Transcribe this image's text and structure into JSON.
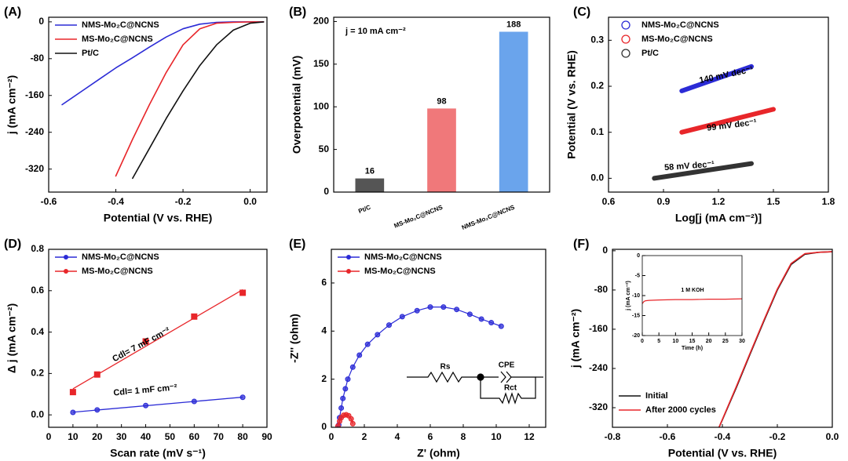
{
  "chart_data": [
    {
      "type": "line",
      "panel_label": "(A)",
      "xlabel": "Potential (V vs. RHE)",
      "ylabel": "j (mA cm⁻²)",
      "x": [
        -0.56,
        -0.5,
        -0.45,
        -0.4,
        -0.35,
        -0.3,
        -0.25,
        -0.2,
        -0.15,
        -0.1,
        -0.05,
        0,
        0.04
      ],
      "series": [
        {
          "name": "NMS-Mo₂C@NCNS",
          "color": "#2b2bd6",
          "values": [
            -180,
            -150,
            -125,
            -100,
            -78,
            -55,
            -33,
            -15,
            -5,
            -1,
            0,
            0,
            0
          ]
        },
        {
          "name": "MS-Mo₂C@NCNS",
          "color": "#e8262a",
          "values": [
            null,
            null,
            null,
            -335,
            -255,
            -180,
            -110,
            -50,
            -15,
            -3,
            -1,
            0,
            0
          ]
        },
        {
          "name": "Pt/C",
          "color": "#111111",
          "values": [
            null,
            null,
            null,
            null,
            -340,
            -275,
            -210,
            -150,
            -95,
            -50,
            -18,
            -3,
            0
          ]
        }
      ],
      "xlim": [
        -0.6,
        0.05
      ],
      "xticks": [
        -0.6,
        -0.4,
        -0.2,
        {
          "value": 0,
          "label": "0.0"
        }
      ],
      "ylim": [
        -370,
        10
      ],
      "yticks": [
        0,
        -80,
        -160,
        -240,
        -320
      ],
      "legend": "upper left"
    },
    {
      "type": "bar",
      "panel_label": "(B)",
      "ylabel": "Overpotential (mV)",
      "annotations": [
        {
          "text": "j = 10 mA cm⁻²",
          "color": "#000000"
        }
      ],
      "categories": [
        "Pt/C",
        "MS-Mo₂C@NCNS",
        "NMS-Mo₂C@NCNS"
      ],
      "values": [
        16,
        98,
        188
      ],
      "colors": [
        "#555555",
        "#f0787a",
        "#6aa4ec"
      ],
      "ylim": [
        0,
        205
      ],
      "yticks": [
        0,
        50,
        100,
        150,
        200
      ]
    },
    {
      "type": "line",
      "panel_label": "(C)",
      "xlabel": "Log[j (mA cm⁻²)]",
      "ylabel": "Potential (V vs. RHE)",
      "x": [
        0.85,
        1.0,
        1.38,
        1.5
      ],
      "series": [
        {
          "name": "NMS-Mo₂C@NCNS",
          "color": "#2b2bd6",
          "values": [
            null,
            0.19,
            0.243,
            null
          ]
        },
        {
          "name": "MS-Mo₂C@NCNS",
          "color": "#e8262a",
          "values": [
            null,
            0.1,
            0.138,
            0.15
          ]
        },
        {
          "name": "Pt/C",
          "color": "#333333",
          "values": [
            0.0,
            0.009,
            0.032,
            null
          ]
        }
      ],
      "annotations": [
        {
          "text": "140 mV dec⁻¹",
          "color": "#2b2bd6"
        },
        {
          "text": "99 mV dec⁻¹",
          "color": "#e8262a"
        },
        {
          "text": "58 mV dec⁻¹",
          "color": "#000000"
        }
      ],
      "xlim": [
        0.6,
        1.8
      ],
      "xticks": [
        0.6,
        0.9,
        1.2,
        1.5,
        1.8
      ],
      "ylim": [
        -0.03,
        0.35
      ],
      "yticks": [
        {
          "value": 0,
          "label": "0.0"
        },
        0.1,
        0.2,
        0.3
      ],
      "legend": "upper left",
      "legend_marker": "circle",
      "line_width": 6
    },
    {
      "type": "scatter",
      "panel_label": "(D)",
      "xlabel": "Scan rate (mV s⁻¹)",
      "ylabel": "Δ j (mA cm⁻²)",
      "x": [
        10,
        20,
        40,
        60,
        80
      ],
      "series": [
        {
          "name": "NMS-Mo₂C@NCNS",
          "color": "#2b2bd6",
          "marker": "circle",
          "values": [
            0.012,
            0.024,
            0.045,
            0.065,
            0.085
          ]
        },
        {
          "name": "MS-Mo₂C@NCNS",
          "color": "#e8262a",
          "marker": "square",
          "values": [
            0.11,
            0.195,
            0.355,
            0.475,
            0.59
          ]
        }
      ],
      "annotations": [
        {
          "text": "Cdl= 7 mF cm⁻²",
          "color": "#e8262a"
        },
        {
          "text": "Cdl= 1 mF cm⁻²",
          "color": "#2b2bd6"
        }
      ],
      "fit": "linear",
      "xlim": [
        0,
        90
      ],
      "xticks": [
        0,
        10,
        20,
        30,
        40,
        50,
        60,
        70,
        80,
        90
      ],
      "ylim": [
        -0.06,
        0.8
      ],
      "yticks": [
        {
          "value": 0,
          "label": "0.0"
        },
        0.2,
        0.4,
        0.6,
        0.8
      ],
      "legend": "upper left"
    },
    {
      "type": "scatter",
      "panel_label": "(E)",
      "xlabel": "Z' (ohm)",
      "ylabel": "-Z'' (ohm)",
      "series": [
        {
          "name": "NMS-Mo₂C@NCNS",
          "color": "#2b2bd6",
          "marker": "circle",
          "x": [
            0.45,
            0.5,
            0.6,
            0.7,
            0.85,
            1.0,
            1.3,
            1.7,
            2.2,
            2.8,
            3.5,
            4.3,
            5.2,
            6.0,
            6.8,
            7.6,
            8.4,
            9.1,
            9.7,
            10.3
          ],
          "values": [
            0.1,
            0.4,
            0.8,
            1.2,
            1.6,
            2.0,
            2.5,
            3.0,
            3.45,
            3.85,
            4.25,
            4.6,
            4.85,
            5.0,
            5.0,
            4.9,
            4.7,
            4.5,
            4.35,
            4.2
          ]
        },
        {
          "name": "MS-Mo₂C@NCNS",
          "color": "#e8262a",
          "marker": "circle",
          "x": [
            0.4,
            0.5,
            0.6,
            0.75,
            0.9,
            1.05,
            1.2,
            1.3
          ],
          "values": [
            0.05,
            0.25,
            0.4,
            0.5,
            0.52,
            0.48,
            0.35,
            0.15
          ]
        }
      ],
      "connect": true,
      "circuit_labels": [
        "Rs",
        "CPE",
        "Rct"
      ],
      "xlim": [
        0,
        13
      ],
      "xticks": [
        0,
        2,
        4,
        6,
        8,
        10,
        12
      ],
      "ylim": [
        0,
        7.4
      ],
      "yticks": [
        0,
        2,
        4,
        6
      ],
      "legend": "upper left"
    },
    {
      "type": "line",
      "panel_label": "(F)",
      "xlabel": "Potential (V vs. RHE)",
      "ylabel": "j (mA cm⁻²)",
      "x": [
        -0.42,
        -0.4,
        -0.35,
        -0.3,
        -0.25,
        -0.2,
        -0.15,
        -0.1,
        -0.05,
        0
      ],
      "series": [
        {
          "name": "Initial",
          "color": "#111111",
          "values": [
            -370,
            -345,
            -280,
            -212,
            -145,
            -80,
            -28,
            -7,
            -3,
            -2
          ]
        },
        {
          "name": "After 2000 cycles",
          "color": "#e8262a",
          "values": [
            -370,
            -344,
            -278,
            -210,
            -143,
            -78,
            -26,
            -6,
            -3,
            -2
          ]
        }
      ],
      "xlim": [
        -0.8,
        0
      ],
      "xticks": [
        -0.8,
        -0.6,
        -0.4,
        -0.2,
        {
          "value": 0,
          "label": "0.0"
        }
      ],
      "ylim": [
        -360,
        3
      ],
      "yticks": [
        0,
        -80,
        -160,
        -240,
        -320
      ],
      "legend": "lower left"
    },
    {
      "type": "line",
      "xlabel": "Time (h)",
      "ylabel": "j (mA cm⁻²)",
      "inset": true,
      "x": [
        0,
        0.5,
        1,
        2,
        5,
        10,
        15,
        20,
        25,
        30
      ],
      "series": [
        {
          "color": "#e8262a",
          "values": [
            -12,
            -11.5,
            -11.3,
            -11.2,
            -11.1,
            -11,
            -11,
            -10.9,
            -10.9,
            -10.8
          ]
        }
      ],
      "annotations": [
        {
          "text": "1 M KOH",
          "color": "#e8262a"
        }
      ],
      "xlim": [
        0,
        30
      ],
      "xticks": [
        0,
        5,
        10,
        15,
        20,
        25,
        30
      ],
      "ylim": [
        -20,
        0
      ],
      "yticks": [
        0,
        -5,
        -10,
        -15,
        -20
      ]
    }
  ]
}
